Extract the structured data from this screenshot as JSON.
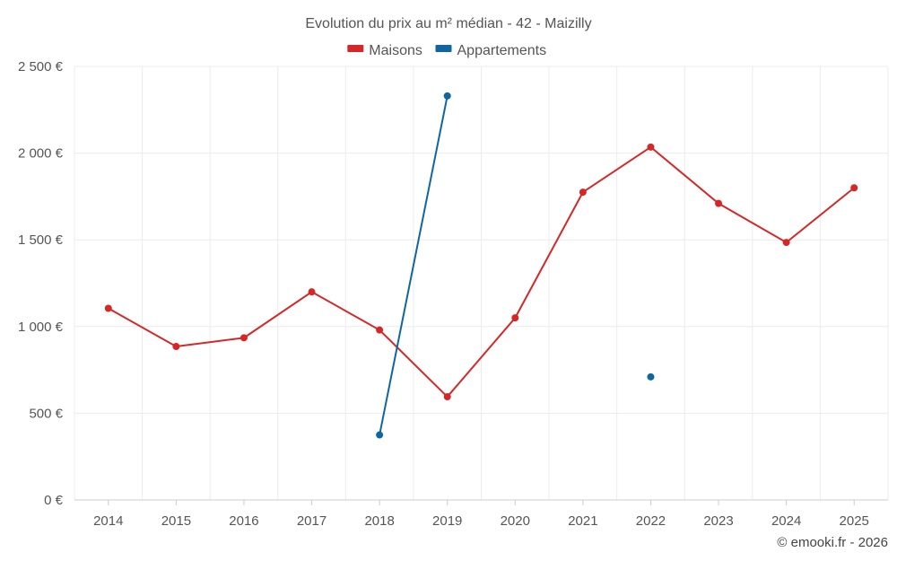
{
  "chart_data": {
    "type": "line",
    "title": "Evolution du prix au m² médian - 42 - Maizilly",
    "categories": [
      "2014",
      "2015",
      "2016",
      "2017",
      "2018",
      "2019",
      "2020",
      "2021",
      "2022",
      "2023",
      "2024",
      "2025"
    ],
    "ylim": [
      0,
      2500
    ],
    "yticks": [
      0,
      500,
      1000,
      1500,
      2000,
      2500
    ],
    "ytick_labels": [
      "0 €",
      "500 €",
      "1 000 €",
      "1 500 €",
      "2 000 €",
      "2 500 €"
    ],
    "xlabel": "",
    "ylabel": "",
    "grid": true,
    "legend_position": "top-center",
    "series": [
      {
        "name": "Maisons",
        "color": "#d62728",
        "values": [
          1105,
          885,
          935,
          1200,
          980,
          595,
          1050,
          1775,
          2035,
          1710,
          1485,
          1800
        ]
      },
      {
        "name": "Appartements",
        "color": "#1066a0",
        "values": [
          null,
          null,
          null,
          null,
          375,
          2330,
          null,
          null,
          710,
          null,
          null,
          null
        ]
      }
    ]
  },
  "credit": "© emooki.fr - 2026"
}
